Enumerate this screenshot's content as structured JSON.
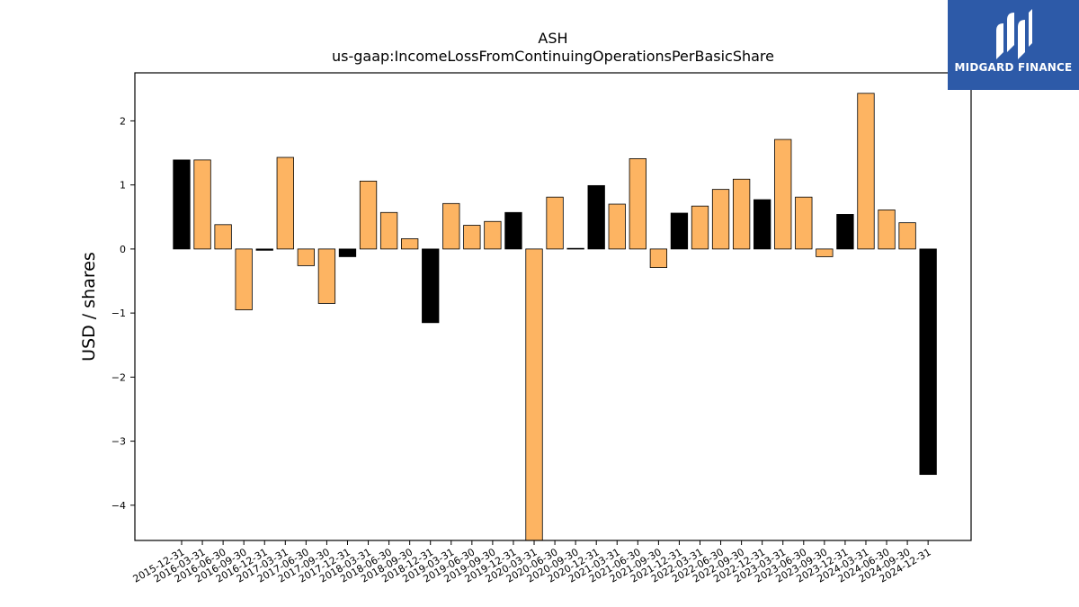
{
  "brand": {
    "name": "MIDGARD FINANCE",
    "bg_color": "#2d5aa8"
  },
  "chart_data": {
    "type": "bar",
    "title": "ASH",
    "subtitle": "us-gaap:IncomeLossFromContinuingOperationsPerBasicShare",
    "xlabel": "",
    "ylabel": "USD / shares",
    "ylim": [
      -4.55,
      2.75
    ],
    "yticks": [
      -4,
      -3,
      -2,
      -1,
      0,
      1,
      2
    ],
    "grid": false,
    "colors": {
      "quarter": "#fdb462",
      "fiscal_year_end": "#000000"
    },
    "categories": [
      "2015-12-31",
      "2016-03-31",
      "2016-06-30",
      "2016-09-30",
      "2016-12-31",
      "2017-03-31",
      "2017-06-30",
      "2017-09-30",
      "2017-12-31",
      "2018-03-31",
      "2018-06-30",
      "2018-09-30",
      "2018-12-31",
      "2019-03-31",
      "2019-06-30",
      "2019-09-30",
      "2019-12-31",
      "2020-03-31",
      "2020-06-30",
      "2020-09-30",
      "2020-12-31",
      "2021-03-31",
      "2021-06-30",
      "2021-09-30",
      "2021-12-31",
      "2022-03-31",
      "2022-06-30",
      "2022-09-30",
      "2022-12-31",
      "2023-03-31",
      "2023-06-30",
      "2023-09-30",
      "2023-12-31",
      "2024-03-31",
      "2024-06-30",
      "2024-09-30",
      "2024-12-31"
    ],
    "values": [
      1.39,
      1.39,
      0.38,
      -0.95,
      -0.02,
      1.43,
      -0.26,
      -0.85,
      -0.12,
      1.06,
      0.57,
      0.16,
      -1.15,
      0.71,
      0.37,
      0.43,
      0.57,
      -4.6,
      0.81,
      0.01,
      0.99,
      0.7,
      1.41,
      -0.29,
      0.56,
      0.67,
      0.93,
      1.09,
      0.77,
      1.71,
      0.81,
      -0.12,
      0.54,
      2.43,
      0.61,
      0.41,
      -3.52
    ],
    "bar_color_keys": [
      "fiscal_year_end",
      "quarter",
      "quarter",
      "quarter",
      "fiscal_year_end",
      "quarter",
      "quarter",
      "quarter",
      "fiscal_year_end",
      "quarter",
      "quarter",
      "quarter",
      "fiscal_year_end",
      "quarter",
      "quarter",
      "quarter",
      "fiscal_year_end",
      "quarter",
      "quarter",
      "quarter",
      "fiscal_year_end",
      "quarter",
      "quarter",
      "quarter",
      "fiscal_year_end",
      "quarter",
      "quarter",
      "quarter",
      "fiscal_year_end",
      "quarter",
      "quarter",
      "quarter",
      "fiscal_year_end",
      "quarter",
      "quarter",
      "quarter",
      "fiscal_year_end"
    ]
  }
}
